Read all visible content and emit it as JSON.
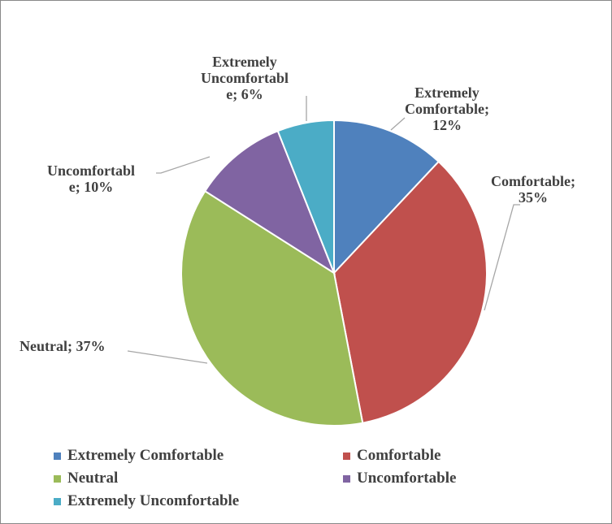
{
  "chart_data": {
    "type": "pie",
    "title": "",
    "start": "top",
    "direction": "clockwise",
    "slices": [
      {
        "name": "Extremely Comfortable",
        "value": 12,
        "color": "#4F81BD",
        "label_lines": [
          "Extremely",
          "Comfortable;",
          "12%"
        ]
      },
      {
        "name": "Comfortable",
        "value": 35,
        "color": "#C0504D",
        "label_lines": [
          "Comfortable;",
          "35%"
        ]
      },
      {
        "name": "Neutral",
        "value": 37,
        "color": "#9BBB59",
        "label_lines": [
          "Neutral; 37%"
        ]
      },
      {
        "name": "Uncomfortable",
        "value": 10,
        "color": "#8064A2",
        "label_lines": [
          "Uncomfortabl",
          "e; 10%"
        ]
      },
      {
        "name": "Extremely Uncomfortable",
        "value": 6,
        "color": "#4BACC6",
        "label_lines": [
          "Extremely",
          "Uncomfortabl",
          "e; 6%"
        ]
      }
    ],
    "legend_placement": "bottom"
  }
}
